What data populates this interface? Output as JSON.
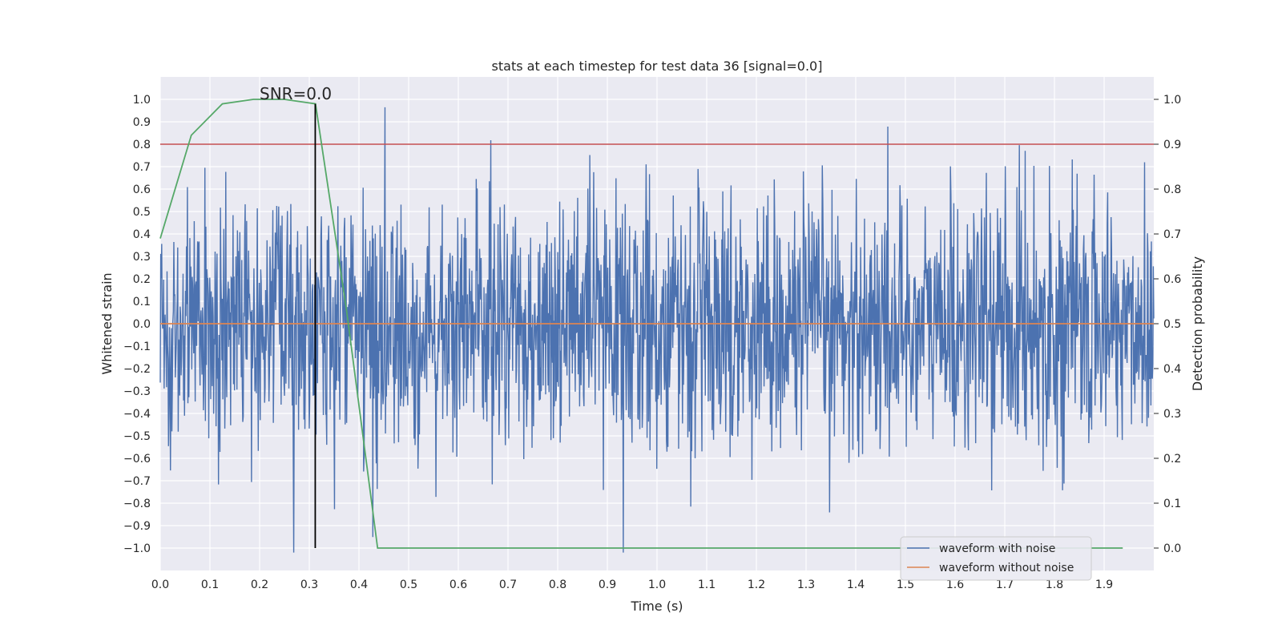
{
  "chart_data": {
    "type": "line",
    "title": "stats at each timestep for test data 36 [signal=0.0]",
    "xlabel": "Time (s)",
    "ylabel": "Whitened strain",
    "y2label": "Detection probability",
    "xlim": [
      0.0,
      2.0
    ],
    "ylim": [
      -1.1,
      1.1
    ],
    "y2lim": [
      -0.05,
      1.05
    ],
    "xticks": [
      "0.0",
      "0.1",
      "0.2",
      "0.3",
      "0.4",
      "0.5",
      "0.6",
      "0.7",
      "0.8",
      "0.9",
      "1.0",
      "1.1",
      "1.2",
      "1.3",
      "1.4",
      "1.5",
      "1.6",
      "1.7",
      "1.8",
      "1.9"
    ],
    "yticks": [
      "1.0",
      "0.9",
      "0.8",
      "0.7",
      "0.6",
      "0.5",
      "0.4",
      "0.3",
      "0.2",
      "0.1",
      "0.0",
      "−0.1",
      "−0.2",
      "−0.3",
      "−0.4",
      "−0.5",
      "−0.6",
      "−0.7",
      "−0.8",
      "−0.9",
      "−1.0"
    ],
    "y2ticks": [
      "1.0",
      "0.9",
      "0.8",
      "0.7",
      "0.6",
      "0.5",
      "0.4",
      "0.3",
      "0.2",
      "0.1",
      "0.0"
    ],
    "annotation": "SNR=0.0",
    "threshold_probability": 0.9,
    "marker_time": 0.312,
    "series": [
      {
        "name": "waveform with noise",
        "color": "#4c72b0",
        "axis": "left",
        "kind": "noise",
        "amplitude_std": 0.28,
        "samples": 2048
      },
      {
        "name": "waveform without noise",
        "color": "#dd8452",
        "axis": "left",
        "values_constant": 0.0
      },
      {
        "name": "detection probability",
        "color": "#55a868",
        "axis": "right",
        "x": [
          0.0,
          0.0625,
          0.125,
          0.1875,
          0.25,
          0.3125,
          0.375,
          0.4375,
          0.5,
          0.5625,
          0.625,
          0.6875,
          0.75,
          0.8125,
          0.875,
          0.9375,
          1.0,
          1.0625,
          1.125,
          1.1875,
          1.25,
          1.3125,
          1.375,
          1.4375,
          1.5,
          1.5625,
          1.625,
          1.6875,
          1.75,
          1.8125,
          1.875,
          1.9375
        ],
        "values": [
          0.69,
          0.92,
          0.99,
          1.0,
          1.0,
          0.99,
          0.53,
          0.0,
          0.0,
          0.0,
          0.0,
          0.0,
          0.0,
          0.0,
          0.0,
          0.0,
          0.0,
          0.0,
          0.0,
          0.0,
          0.0,
          0.0,
          0.0,
          0.0,
          0.0,
          0.0,
          0.0,
          0.0,
          0.0,
          0.0,
          0.0,
          0.0
        ]
      },
      {
        "name": "threshold",
        "color": "#c44e52",
        "axis": "right",
        "values_constant": 0.9
      }
    ],
    "legend": {
      "placement": "lower-right",
      "entries": [
        "waveform with noise",
        "waveform without noise"
      ]
    }
  }
}
